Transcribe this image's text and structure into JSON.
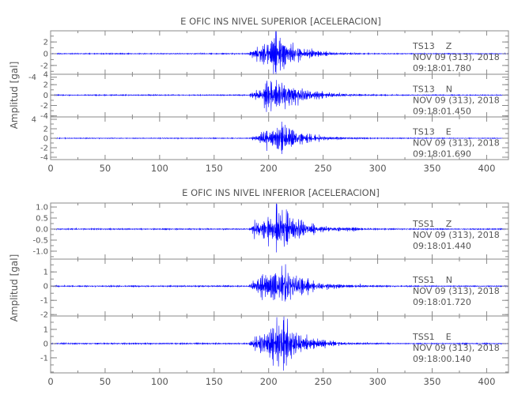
{
  "chart_data": [
    {
      "type": "line",
      "title": "E OFIC INS NIVEL SUPERIOR [ACELERACION]",
      "xlabel": "",
      "ylabel": "Amplitud [gal]",
      "xlim": [
        0,
        420
      ],
      "xticks": [
        0,
        50,
        100,
        150,
        200,
        250,
        300,
        350,
        400
      ],
      "grid": false,
      "line_color": "#0000ff",
      "panels": [
        {
          "station": "TS13",
          "component": "Z",
          "date": "NOV 09 (313), 2018",
          "time": "09:18:01.780",
          "ylim": [
            -3.5,
            3.9
          ],
          "yticks": [
            2,
            0,
            -2,
            -4
          ],
          "ytick_labels": [
            "2",
            "0",
            "-2",
            "-4"
          ],
          "onset": 182,
          "peak_time": 208,
          "peak_amplitude": 3.5,
          "decay": 18,
          "seed": 11
        },
        {
          "station": "TS13",
          "component": "N",
          "date": "NOV 09 (313), 2018",
          "time": "09:18:01.450",
          "ylim": [
            -4.2,
            4.0
          ],
          "yticks": [
            4,
            2,
            0,
            -2,
            -4
          ],
          "ytick_labels": [
            "4",
            "2",
            "0",
            "-2",
            "-4"
          ],
          "onset": 182,
          "peak_time": 210,
          "peak_amplitude": 3.9,
          "decay": 22,
          "seed": 23
        },
        {
          "station": "TS13",
          "component": "E",
          "date": "NOV 09 (313), 2018",
          "time": "09:18:01.690",
          "ylim": [
            -4.5,
            4.5
          ],
          "yticks": [
            4,
            2,
            0,
            -2,
            -4
          ],
          "ytick_labels": [
            "4",
            "2",
            "0",
            "-2",
            "-4"
          ],
          "onset": 184,
          "peak_time": 212,
          "peak_amplitude": 3.6,
          "decay": 20,
          "seed": 37
        }
      ]
    },
    {
      "type": "line",
      "title": "E OFIC INS NIVEL INFERIOR [ACELERACION]",
      "xlabel": "",
      "ylabel": "Amplitud [gal]",
      "xlim": [
        0,
        420
      ],
      "xticks": [
        0,
        50,
        100,
        150,
        200,
        250,
        300,
        350,
        400
      ],
      "grid": false,
      "line_color": "#0000ff",
      "panels": [
        {
          "station": "TSS1",
          "component": "Z",
          "date": "NOV 09 (313), 2018",
          "time": "09:18:01.440",
          "ylim": [
            -1.36,
            1.18
          ],
          "yticks": [
            1.0,
            0.5,
            0.0,
            -0.5,
            -1.0
          ],
          "ytick_labels": [
            "1.0",
            "0.5",
            "0.0",
            "-0.5",
            "-1.0"
          ],
          "onset": 182,
          "peak_time": 208,
          "peak_amplitude": 1.1,
          "decay": 22,
          "seed": 51
        },
        {
          "station": "TSS1",
          "component": "N",
          "date": "NOV 09 (313), 2018",
          "time": "09:18:01.720",
          "ylim": [
            -2.1,
            1.9
          ],
          "yticks": [
            1,
            0,
            -1,
            -2
          ],
          "ytick_labels": [
            "1",
            "0",
            "-1",
            "-2"
          ],
          "onset": 182,
          "peak_time": 210,
          "peak_amplitude": 1.9,
          "decay": 20,
          "seed": 67
        },
        {
          "station": "TSS1",
          "component": "E",
          "date": "NOV 09 (313), 2018",
          "time": "09:18:00.140",
          "ylim": [
            -2.06,
            1.94
          ],
          "yticks": [
            1,
            0,
            -1
          ],
          "ytick_labels": [
            "1",
            "0",
            "-1"
          ],
          "onset": 182,
          "peak_time": 210,
          "peak_amplitude": 1.8,
          "decay": 20,
          "seed": 79
        }
      ]
    }
  ]
}
